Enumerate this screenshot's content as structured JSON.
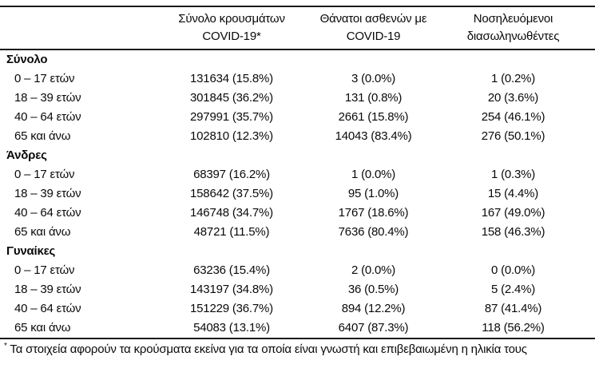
{
  "table": {
    "columns": [
      {
        "id": "cases",
        "label_line1": "Σύνολο κρουσμάτων",
        "label_line2": "COVID-19*"
      },
      {
        "id": "deaths",
        "label_line1": "Θάνατοι ασθενών με",
        "label_line2": "COVID-19"
      },
      {
        "id": "intubated",
        "label_line1": "Νοσηλευόμενοι",
        "label_line2": "διασωληνωθέντες"
      }
    ],
    "sections": [
      {
        "title": "Σύνολο",
        "rows": [
          {
            "label": "0 – 17 ετών",
            "cases": "131634 (15.8%)",
            "deaths": "3 (0.0%)",
            "intubated": "1 (0.2%)"
          },
          {
            "label": "18 – 39 ετών",
            "cases": "301845 (36.2%)",
            "deaths": "131 (0.8%)",
            "intubated": "20 (3.6%)"
          },
          {
            "label": "40 – 64 ετών",
            "cases": "297991 (35.7%)",
            "deaths": "2661 (15.8%)",
            "intubated": "254 (46.1%)"
          },
          {
            "label": "65 και άνω",
            "cases": "102810 (12.3%)",
            "deaths": "14043 (83.4%)",
            "intubated": "276 (50.1%)"
          }
        ]
      },
      {
        "title": "Άνδρες",
        "rows": [
          {
            "label": "0 – 17 ετών",
            "cases": "68397 (16.2%)",
            "deaths": "1 (0.0%)",
            "intubated": "1 (0.3%)"
          },
          {
            "label": "18 – 39 ετών",
            "cases": "158642 (37.5%)",
            "deaths": "95 (1.0%)",
            "intubated": "15 (4.4%)"
          },
          {
            "label": "40 – 64 ετών",
            "cases": "146748 (34.7%)",
            "deaths": "1767 (18.6%)",
            "intubated": "167 (49.0%)"
          },
          {
            "label": "65 και άνω",
            "cases": "48721 (11.5%)",
            "deaths": "7636 (80.4%)",
            "intubated": "158 (46.3%)"
          }
        ]
      },
      {
        "title": "Γυναίκες",
        "rows": [
          {
            "label": "0 – 17 ετών",
            "cases": "63236 (15.4%)",
            "deaths": "2 (0.0%)",
            "intubated": "0 (0.0%)"
          },
          {
            "label": "18 – 39 ετών",
            "cases": "143197 (34.8%)",
            "deaths": "36 (0.5%)",
            "intubated": "5 (2.4%)"
          },
          {
            "label": "40 – 64 ετών",
            "cases": "151229 (36.7%)",
            "deaths": "894 (12.2%)",
            "intubated": "87 (41.4%)"
          },
          {
            "label": "65 και άνω",
            "cases": "54083 (13.1%)",
            "deaths": "6407 (87.3%)",
            "intubated": "118 (56.2%)"
          }
        ]
      }
    ],
    "footnote": {
      "marker": "*",
      "text": " Τα στοιχεία αφορούν τα κρούσματα εκείνα για τα οποία είναι γνωστή και επιβεβαιωμένη η ηλικία τους"
    }
  },
  "colors": {
    "text": "#0a0a0a",
    "rule": "#1a1a1a",
    "background": "#ffffff"
  }
}
